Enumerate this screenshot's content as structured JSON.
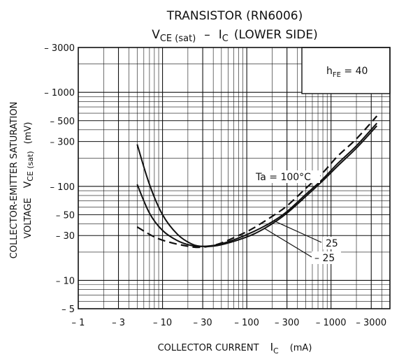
{
  "chart_data": {
    "type": "line",
    "title_line1": "TRANSISTOR (RN6006)",
    "title_line2": {
      "v": "V",
      "v_sub": "CE (sat)",
      "dash": "–",
      "i": "I",
      "i_sub": "C",
      "rest": "(LOWER SIDE)"
    },
    "xlabel": {
      "main": "COLLECTOR CURRENT",
      "sym": "I",
      "sub": "C",
      "unit": "(mA)"
    },
    "ylabel": {
      "line1": "COLLECTOR-EMITTER SATURATION",
      "line2_pre": "VOLTAGE",
      "sym": "V",
      "sub": "CE (sat)",
      "unit": "(mV)"
    },
    "x_scale": "log",
    "y_scale": "log",
    "xlim": [
      -1,
      -5000
    ],
    "ylim": [
      -5,
      -3000
    ],
    "x_ticks": [
      {
        "value": -1,
        "label": "– 1"
      },
      {
        "value": -3,
        "label": "– 3"
      },
      {
        "value": -10,
        "label": "– 10"
      },
      {
        "value": -30,
        "label": "– 30"
      },
      {
        "value": -100,
        "label": "– 100"
      },
      {
        "value": -300,
        "label": "– 300"
      },
      {
        "value": -1000,
        "label": "– 1000"
      },
      {
        "value": -3000,
        "label": "– 3000"
      }
    ],
    "y_ticks": [
      {
        "value": -3000,
        "label": "– 3000"
      },
      {
        "value": -1000,
        "label": "– 1000"
      },
      {
        "value": -500,
        "label": "– 500"
      },
      {
        "value": -300,
        "label": "– 300"
      },
      {
        "value": -100,
        "label": "– 100"
      },
      {
        "value": -50,
        "label": "– 50"
      },
      {
        "value": -30,
        "label": "– 30"
      },
      {
        "value": -10,
        "label": "– 10"
      },
      {
        "value": -5,
        "label": "– 5"
      }
    ],
    "grid": true,
    "legend_box": {
      "h": "h",
      "sub": "FE",
      "rest": " = 40",
      "placement": "top-right"
    },
    "series": [
      {
        "name": "Ta = 100°C",
        "style": "dashed",
        "x": [
          -5,
          -8,
          -12,
          -18,
          -25,
          -35,
          -50,
          -80,
          -120,
          -200,
          -300,
          -500,
          -800,
          -1200,
          -2000,
          -3500
        ],
        "y": [
          -37,
          -29,
          -25.5,
          -23.5,
          -22.5,
          -23,
          -25,
          -30,
          -36,
          -48,
          -62,
          -95,
          -140,
          -210,
          -320,
          -560
        ]
      },
      {
        "name": "25",
        "style": "solid",
        "x": [
          -5,
          -7,
          -10,
          -15,
          -22,
          -30,
          -45,
          -70,
          -120,
          -200,
          -300,
          -500,
          -800,
          -1200,
          -2000,
          -3500
        ],
        "y": [
          -105,
          -52,
          -34,
          -26.5,
          -23.5,
          -23,
          -24,
          -27,
          -33,
          -42,
          -54,
          -82,
          -120,
          -175,
          -270,
          -470
        ]
      },
      {
        "name": "– 25",
        "style": "solid",
        "x": [
          -5,
          -7,
          -10,
          -15,
          -22,
          -30,
          -45,
          -70,
          -120,
          -200,
          -300,
          -500,
          -800,
          -1200,
          -2000,
          -3500
        ],
        "y": [
          -280,
          -105,
          -50,
          -31,
          -24.5,
          -23,
          -23.5,
          -26,
          -31,
          -40,
          -52,
          -78,
          -115,
          -165,
          -255,
          -440
        ]
      }
    ],
    "annotations": [
      {
        "text": "Ta = 100°C",
        "series": "Ta = 100°C"
      },
      {
        "text": "25",
        "series": "25"
      },
      {
        "text": "– 25",
        "series": "– 25"
      }
    ]
  }
}
